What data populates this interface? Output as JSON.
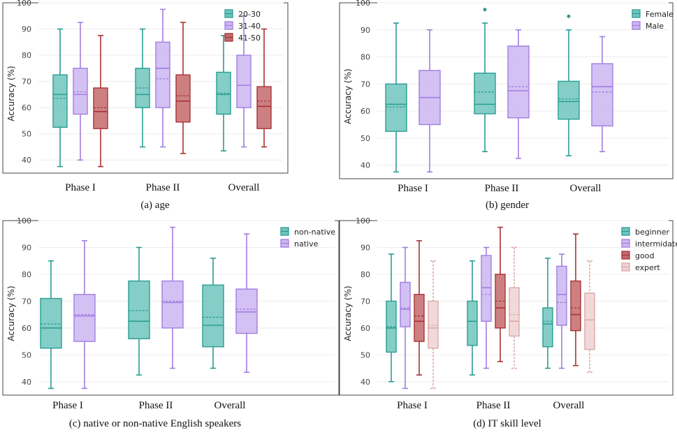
{
  "colors": {
    "teal": "#2a9d93",
    "teal_fill": "#6ec5bd",
    "purple": "#a07ee0",
    "purple_fill": "#ccb6f2",
    "red": "#a83236",
    "red_fill": "#c46a6c",
    "pink": "#dba8a8",
    "pink_fill": "#f0d2d2",
    "grid": "#ececec",
    "frame": "#444444"
  },
  "chart_data": [
    {
      "type": "boxplot",
      "title": "",
      "caption": "(a) age",
      "ylabel": "Accuracy (%)",
      "ylim": [
        35,
        100
      ],
      "yticks": [
        40,
        50,
        60,
        70,
        80,
        90,
        100
      ],
      "categories": [
        "Phase I",
        "Phase II",
        "Overall"
      ],
      "legend": {
        "position": "top-right",
        "entries": [
          "20-30",
          "31-40",
          "41-50"
        ]
      },
      "series": [
        {
          "name": "20-30",
          "color": "teal",
          "boxes": [
            {
              "min": 37.5,
              "q1": 52.5,
              "median": 65,
              "q3": 72.5,
              "max": 90,
              "mean": 63.5
            },
            {
              "min": 45,
              "q1": 60,
              "median": 65,
              "q3": 75,
              "max": 90,
              "mean": 67.5
            },
            {
              "min": 43.5,
              "q1": 57.5,
              "median": 65,
              "q3": 73.5,
              "max": 87.5,
              "mean": 65.5
            }
          ]
        },
        {
          "name": "31-40",
          "color": "purple",
          "boxes": [
            {
              "min": 40,
              "q1": 57.5,
              "median": 65,
              "q3": 75,
              "max": 92.5,
              "mean": 66
            },
            {
              "min": 45,
              "q1": 60,
              "median": 75,
              "q3": 85,
              "max": 97.5,
              "mean": 71
            },
            {
              "min": 45,
              "q1": 60,
              "median": 68.5,
              "q3": 80,
              "max": 95,
              "mean": 68.5
            }
          ]
        },
        {
          "name": "41-50",
          "color": "red",
          "boxes": [
            {
              "min": 37.5,
              "q1": 52,
              "median": 58.5,
              "q3": 67.5,
              "max": 87.5,
              "mean": 60
            },
            {
              "min": 42.5,
              "q1": 54.5,
              "median": 62.5,
              "q3": 72.5,
              "max": 92.5,
              "mean": 64.5
            },
            {
              "min": 45,
              "q1": 52,
              "median": 60.5,
              "q3": 68,
              "max": 90,
              "mean": 62.5
            }
          ]
        }
      ]
    },
    {
      "type": "boxplot",
      "title": "",
      "caption": "(b) gender",
      "ylabel": "Accuracy (%)",
      "ylim": [
        35,
        100
      ],
      "yticks": [
        40,
        50,
        60,
        70,
        80,
        90,
        100
      ],
      "categories": [
        "Phase I",
        "Phase II",
        "Overall"
      ],
      "legend": {
        "position": "top-right",
        "entries": [
          "Female",
          "Male"
        ]
      },
      "series": [
        {
          "name": "Female",
          "color": "teal",
          "boxes": [
            {
              "min": 37.5,
              "q1": 52.5,
              "median": 62.5,
              "q3": 70,
              "max": 92.5,
              "mean": 61.5
            },
            {
              "min": 45,
              "q1": 59,
              "median": 62.5,
              "q3": 74,
              "max": 92.5,
              "mean": 67,
              "outliers": [
                97.5
              ]
            },
            {
              "min": 43.5,
              "q1": 57,
              "median": 63.5,
              "q3": 71,
              "max": 90,
              "mean": 64.5,
              "outliers": [
                95
              ]
            }
          ]
        },
        {
          "name": "Male",
          "color": "purple",
          "boxes": [
            {
              "min": 37.5,
              "q1": 55,
              "median": 65,
              "q3": 75,
              "max": 90,
              "mean": 65
            },
            {
              "min": 42.5,
              "q1": 57.5,
              "median": 67.5,
              "q3": 84,
              "max": 90,
              "mean": 69
            },
            {
              "min": 45,
              "q1": 54.5,
              "median": 69,
              "q3": 77.5,
              "max": 87.5,
              "mean": 67
            }
          ]
        }
      ]
    },
    {
      "type": "boxplot",
      "title": "",
      "caption": "(c) native or non-native English speakers",
      "ylabel": "Accuracy (%)",
      "ylim": [
        35,
        100
      ],
      "yticks": [
        40,
        50,
        60,
        70,
        80,
        90,
        100
      ],
      "categories": [
        "Phase I",
        "Phase II",
        "Overall"
      ],
      "legend": {
        "position": "top-right",
        "entries": [
          "non-native",
          "native"
        ]
      },
      "series": [
        {
          "name": "non-native",
          "color": "teal",
          "boxes": [
            {
              "min": 37.5,
              "q1": 52.5,
              "median": 60,
              "q3": 71,
              "max": 85,
              "mean": 61.5
            },
            {
              "min": 42.5,
              "q1": 56,
              "median": 62.5,
              "q3": 77.5,
              "max": 90,
              "mean": 66.5
            },
            {
              "min": 45,
              "q1": 53,
              "median": 61,
              "q3": 76,
              "max": 86,
              "mean": 64
            }
          ]
        },
        {
          "name": "native",
          "color": "purple",
          "boxes": [
            {
              "min": 37.5,
              "q1": 55,
              "median": 64.5,
              "q3": 72.5,
              "max": 92.5,
              "mean": 65
            },
            {
              "min": 45,
              "q1": 60,
              "median": 69.5,
              "q3": 77.5,
              "max": 97.5,
              "mean": 70
            },
            {
              "min": 43.5,
              "q1": 58,
              "median": 66,
              "q3": 74.5,
              "max": 95,
              "mean": 67
            }
          ]
        }
      ]
    },
    {
      "type": "boxplot",
      "title": "",
      "caption": "(d) IT skill level",
      "ylabel": "Accuracy (%)",
      "ylim": [
        35,
        100
      ],
      "yticks": [
        40,
        50,
        60,
        70,
        80,
        90,
        100
      ],
      "categories": [
        "Phase I",
        "Phase II",
        "Overall"
      ],
      "legend": {
        "position": "top-right",
        "entries": [
          "beginner",
          "intermidate",
          "good",
          "expert"
        ]
      },
      "series": [
        {
          "name": "beginner",
          "color": "teal",
          "boxes": [
            {
              "min": 40,
              "q1": 51,
              "median": 60,
              "q3": 70,
              "max": 87.5,
              "mean": 60.5
            },
            {
              "min": 42.5,
              "q1": 53.5,
              "median": 62.5,
              "q3": 70,
              "max": 85,
              "mean": 62.5
            },
            {
              "min": 45,
              "q1": 53,
              "median": 61.5,
              "q3": 67.5,
              "max": 86,
              "mean": 62.5
            }
          ]
        },
        {
          "name": "intermidate",
          "color": "purple",
          "boxes": [
            {
              "min": 37.5,
              "q1": 60.5,
              "median": 67,
              "q3": 77,
              "max": 90,
              "mean": 67.5
            },
            {
              "min": 45,
              "q1": 62.5,
              "median": 75,
              "q3": 87,
              "max": 90,
              "mean": 72.5
            },
            {
              "min": 45,
              "q1": 61,
              "median": 72.5,
              "q3": 83,
              "max": 87.5,
              "mean": 69.5
            }
          ]
        },
        {
          "name": "good",
          "color": "red",
          "boxes": [
            {
              "min": 42.5,
              "q1": 55,
              "median": 62.5,
              "q3": 72.5,
              "max": 92.5,
              "mean": 64.5
            },
            {
              "min": 47.5,
              "q1": 60,
              "median": 67.5,
              "q3": 80,
              "max": 97.5,
              "mean": 70
            },
            {
              "min": 46,
              "q1": 59,
              "median": 65,
              "q3": 77.5,
              "max": 95,
              "mean": 67.5
            }
          ]
        },
        {
          "name": "expert",
          "color": "pink",
          "boxes": [
            {
              "min": 37.5,
              "q1": 52.5,
              "median": 60,
              "q3": 70,
              "max": 85,
              "mean": 61
            },
            {
              "min": 45,
              "q1": 57,
              "median": 62.5,
              "q3": 75,
              "max": 90,
              "mean": 65
            },
            {
              "min": 43.5,
              "q1": 52,
              "median": 63,
              "q3": 73,
              "max": 85,
              "mean": 63
            }
          ]
        }
      ]
    }
  ]
}
